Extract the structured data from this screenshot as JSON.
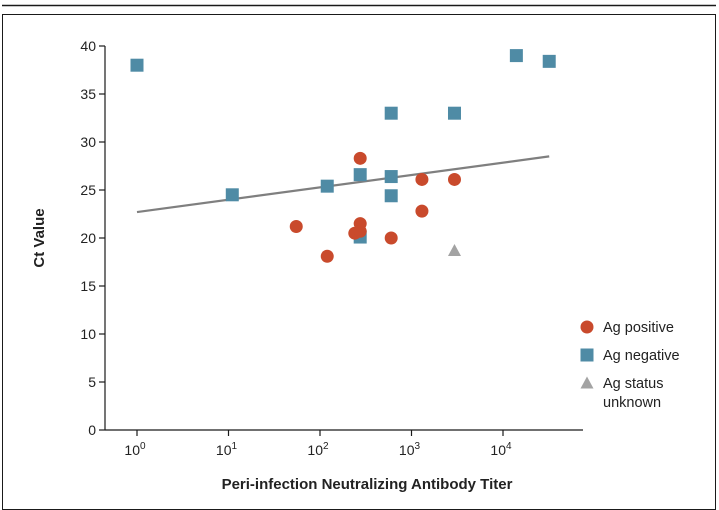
{
  "colors": {
    "ag_positive": "#c94a2c",
    "ag_negative": "#4f8ba5",
    "ag_unknown": "#a3a3a3",
    "trend_line": "#7f7f7f",
    "axis": "#1a1a1a"
  },
  "chart_data": {
    "type": "scatter",
    "xlabel": "Peri-infection Neutralizing Antibody Titer",
    "ylabel": "Ct Value",
    "x_scale": "log10",
    "xlim": [
      1,
      100000
    ],
    "ylim": [
      0,
      40
    ],
    "x_ticks": [
      {
        "value": 1,
        "base": "10",
        "exp": "0"
      },
      {
        "value": 10,
        "base": "10",
        "exp": "1"
      },
      {
        "value": 100,
        "base": "10",
        "exp": "2"
      },
      {
        "value": 1000,
        "base": "10",
        "exp": "3"
      },
      {
        "value": 10000,
        "base": "10",
        "exp": "4"
      }
    ],
    "y_ticks": [
      0,
      5,
      10,
      15,
      20,
      25,
      30,
      35,
      40
    ],
    "grid": false,
    "legend_position": "right",
    "series": [
      {
        "name": "Ag positive",
        "marker": "circle",
        "points": [
          {
            "x": 55,
            "y": 21.2
          },
          {
            "x": 120,
            "y": 18.1
          },
          {
            "x": 240,
            "y": 20.5
          },
          {
            "x": 275,
            "y": 21.5
          },
          {
            "x": 275,
            "y": 20.7
          },
          {
            "x": 275,
            "y": 28.3
          },
          {
            "x": 600,
            "y": 20.0
          },
          {
            "x": 1300,
            "y": 22.8
          },
          {
            "x": 1300,
            "y": 26.1
          },
          {
            "x": 2950,
            "y": 26.1
          }
        ]
      },
      {
        "name": "Ag negative",
        "marker": "square",
        "points": [
          {
            "x": 1,
            "y": 38.0
          },
          {
            "x": 11,
            "y": 24.5
          },
          {
            "x": 120,
            "y": 25.4
          },
          {
            "x": 275,
            "y": 26.6
          },
          {
            "x": 275,
            "y": 20.1
          },
          {
            "x": 600,
            "y": 33.0
          },
          {
            "x": 600,
            "y": 26.4
          },
          {
            "x": 600,
            "y": 24.4
          },
          {
            "x": 2950,
            "y": 33.0
          },
          {
            "x": 14000,
            "y": 39.0
          },
          {
            "x": 32000,
            "y": 38.4
          }
        ]
      },
      {
        "name": "Ag status unknown",
        "legend_lines": [
          "Ag status",
          "unknown"
        ],
        "marker": "triangle",
        "points": [
          {
            "x": 2950,
            "y": 18.7
          }
        ]
      }
    ],
    "trend_line": {
      "x_start": 1,
      "y_start": 22.7,
      "x_end": 32000,
      "y_end": 28.5
    }
  }
}
